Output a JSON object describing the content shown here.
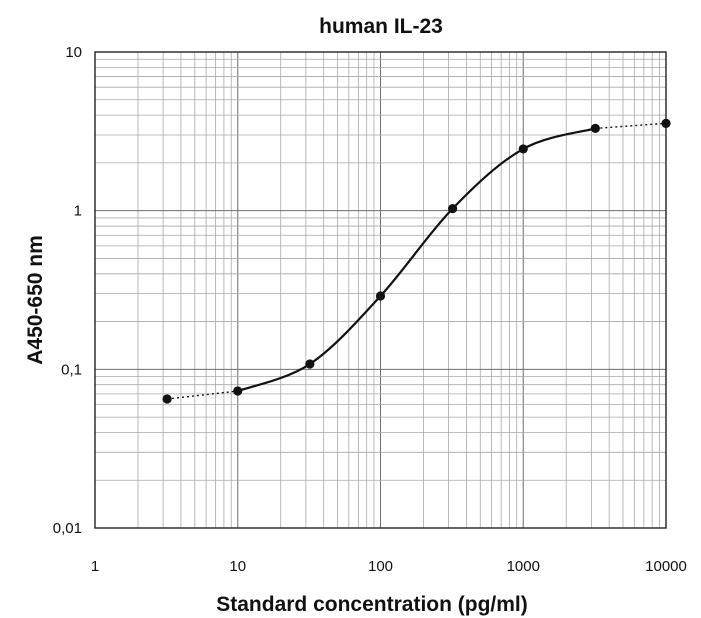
{
  "chart_data": {
    "type": "line",
    "title": "human IL-23",
    "xlabel": "Standard concentration (pg/ml)",
    "ylabel": "A450-650 nm",
    "x_scale": "log",
    "y_scale": "log",
    "xlim": [
      1,
      10000
    ],
    "ylim": [
      0.01,
      10
    ],
    "grid": true,
    "x_ticks": [
      "1",
      "10",
      "100",
      "1000",
      "10000"
    ],
    "y_ticks": [
      "0,01",
      "0,1",
      "1",
      "10"
    ],
    "series": [
      {
        "x": [
          3.2,
          10,
          32,
          100,
          320,
          1000,
          3200,
          10000
        ],
        "y": [
          0.065,
          0.073,
          0.108,
          0.29,
          1.03,
          2.45,
          3.3,
          3.55
        ]
      }
    ]
  }
}
